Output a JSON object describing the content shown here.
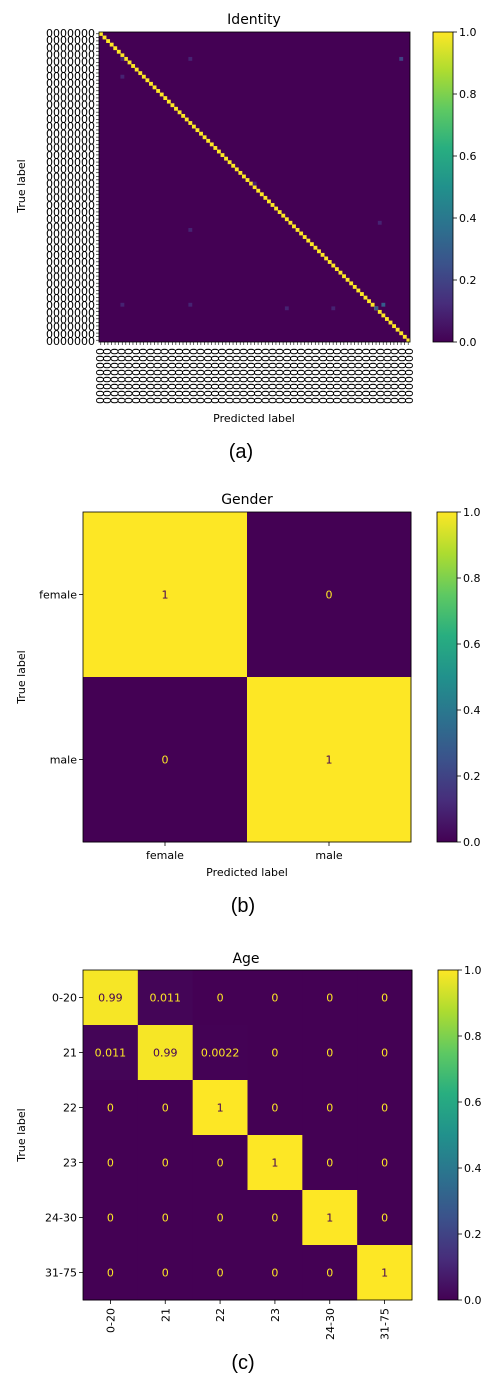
{
  "chart_data": [
    {
      "type": "heatmap",
      "panel": "a",
      "title": "Identity",
      "xlabel": "Predicted label",
      "ylabel": "True label",
      "caption": "(a)",
      "n_classes": 87,
      "diagonal_value": 1.0,
      "off_diagonal_value": 0.0,
      "tick_labels_legible": false,
      "tick_label_glyph": "0",
      "off_diagonal_marks_approx": [
        {
          "row": 7,
          "col": 6,
          "value": 0.1
        },
        {
          "row": 7,
          "col": 25,
          "value": 0.1
        },
        {
          "row": 7,
          "col": 84,
          "value": 0.2
        },
        {
          "row": 12,
          "col": 6,
          "value": 0.1
        },
        {
          "row": 42,
          "col": 43,
          "value": 0.1
        },
        {
          "row": 55,
          "col": 25,
          "value": 0.1
        },
        {
          "row": 53,
          "col": 78,
          "value": 0.1
        },
        {
          "row": 76,
          "col": 6,
          "value": 0.1
        },
        {
          "row": 76,
          "col": 25,
          "value": 0.1
        },
        {
          "row": 77,
          "col": 52,
          "value": 0.1
        },
        {
          "row": 77,
          "col": 65,
          "value": 0.1
        },
        {
          "row": 77,
          "col": 77,
          "value": 0.3
        },
        {
          "row": 76,
          "col": 79,
          "value": 0.3
        }
      ],
      "colorbar": {
        "min": 0.0,
        "max": 1.0,
        "ticks": [
          "0.0",
          "0.2",
          "0.4",
          "0.6",
          "0.8",
          "1.0"
        ]
      }
    },
    {
      "type": "heatmap",
      "panel": "b",
      "title": "Gender",
      "xlabel": "Predicted label",
      "ylabel": "True label",
      "caption": "(b)",
      "categories": [
        "female",
        "male"
      ],
      "matrix": [
        [
          1,
          0
        ],
        [
          0,
          1
        ]
      ],
      "cell_labels": [
        [
          "1",
          "0"
        ],
        [
          "0",
          "1"
        ]
      ],
      "colorbar": {
        "min": 0.0,
        "max": 1.0,
        "ticks": [
          "0.0",
          "0.2",
          "0.4",
          "0.6",
          "0.8",
          "1.0"
        ]
      }
    },
    {
      "type": "heatmap",
      "panel": "c",
      "title": "Age",
      "xlabel": "",
      "ylabel": "True label",
      "caption": "(c)",
      "categories": [
        "0-20",
        "21",
        "22",
        "23",
        "24-30",
        "31-75"
      ],
      "matrix": [
        [
          0.99,
          0.011,
          0,
          0,
          0,
          0
        ],
        [
          0.011,
          0.99,
          0.0022,
          0,
          0,
          0
        ],
        [
          0,
          0,
          1,
          0,
          0,
          0
        ],
        [
          0,
          0,
          0,
          1,
          0,
          0
        ],
        [
          0,
          0,
          0,
          0,
          1,
          0
        ],
        [
          0,
          0,
          0,
          0,
          0,
          1
        ]
      ],
      "cell_labels": [
        [
          "0.99",
          "0.011",
          "0",
          "0",
          "0",
          "0"
        ],
        [
          "0.011",
          "0.99",
          "0.0022",
          "0",
          "0",
          "0"
        ],
        [
          "0",
          "0",
          "1",
          "0",
          "0",
          "0"
        ],
        [
          "0",
          "0",
          "0",
          "1",
          "0",
          "0"
        ],
        [
          "0",
          "0",
          "0",
          "0",
          "1",
          "0"
        ],
        [
          "0",
          "0",
          "0",
          "0",
          "0",
          "1"
        ]
      ],
      "colorbar": {
        "min": 0.0,
        "max": 1.0,
        "ticks": [
          "0.0",
          "0.2",
          "0.4",
          "0.6",
          "0.8",
          "1.0"
        ]
      }
    }
  ],
  "colormap": "viridis",
  "colors": {
    "low": "#440154",
    "high": "#fde725",
    "text_on_low": "#fde725",
    "text_on_high": "#440154"
  }
}
